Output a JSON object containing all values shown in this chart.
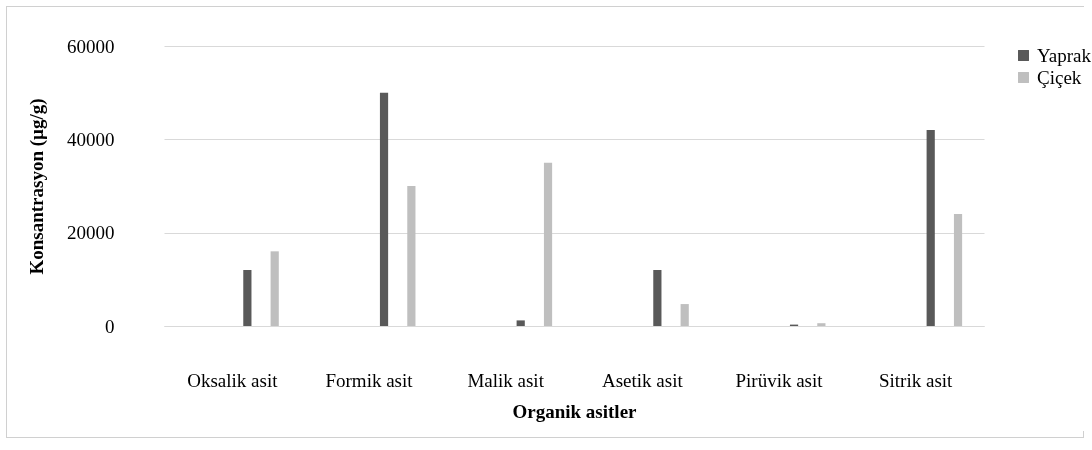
{
  "chart_data": {
    "type": "bar",
    "xlabel": "Organik asitler",
    "ylabel": "Konsantrasyon (µg/g)",
    "categories": [
      "Oksalik asit",
      "Formik asit",
      "Malik asit",
      "Asetik asit",
      "Pirüvik asit",
      "Sitrik asit"
    ],
    "series": [
      {
        "name": "Yaprak",
        "color": "#595959",
        "values": [
          12000,
          50000,
          1200,
          12000,
          300,
          42000
        ]
      },
      {
        "name": "Çiçek",
        "color": "#bfbfbf",
        "values": [
          16000,
          30000,
          35000,
          4700,
          600,
          24000
        ]
      }
    ],
    "ylim": [
      0,
      60000
    ],
    "yticks": [
      0,
      20000,
      40000,
      60000
    ],
    "grid": "y",
    "legend": "right"
  }
}
